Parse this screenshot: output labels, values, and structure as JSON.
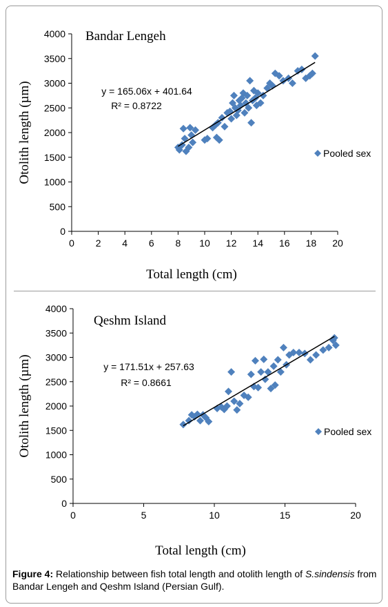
{
  "caption": {
    "label": "Figure 4:",
    "text_before": " Relationship between fish total length and otolith length of ",
    "species": "S.sindensis",
    "text_after": " from Bandar Lengeh and Qeshm Island (Persian Gulf)."
  },
  "colors": {
    "marker": "#4f81bd",
    "line": "#000000",
    "axis": "#000000"
  },
  "chart_data": [
    {
      "type": "scatter",
      "location_label": "Bandar Lengeh",
      "xlabel": "Total length (cm)",
      "ylabel": "Otolith length (µm)",
      "xlim": [
        0,
        20
      ],
      "ylim": [
        0,
        4000
      ],
      "xticks": [
        0,
        2,
        4,
        6,
        8,
        10,
        12,
        14,
        16,
        18,
        20
      ],
      "yticks": [
        0,
        500,
        1000,
        1500,
        2000,
        2500,
        3000,
        3500,
        4000
      ],
      "equation": "y = 165.06x + 401.64",
      "r2": "R² = 0.8722",
      "trendline": {
        "slope": 165.06,
        "intercept": 401.64,
        "x_range": [
          8.0,
          18.3
        ]
      },
      "legend": {
        "label": "Pooled sex",
        "placement": "right"
      },
      "grid": false,
      "series": [
        {
          "name": "Pooled sex",
          "points": [
            [
              8.0,
              1700
            ],
            [
              8.1,
              1650
            ],
            [
              8.3,
              1750
            ],
            [
              8.4,
              2080
            ],
            [
              8.5,
              1880
            ],
            [
              8.6,
              1620
            ],
            [
              8.8,
              1700
            ],
            [
              8.9,
              2100
            ],
            [
              9.0,
              1950
            ],
            [
              9.1,
              1800
            ],
            [
              9.3,
              2050
            ],
            [
              10.0,
              1850
            ],
            [
              10.2,
              1880
            ],
            [
              10.6,
              2100
            ],
            [
              10.8,
              2150
            ],
            [
              10.9,
              1900
            ],
            [
              11.0,
              2200
            ],
            [
              11.1,
              1850
            ],
            [
              11.3,
              2300
            ],
            [
              11.5,
              2120
            ],
            [
              11.7,
              2400
            ],
            [
              11.9,
              2430
            ],
            [
              12.0,
              2280
            ],
            [
              12.1,
              2600
            ],
            [
              12.2,
              2750
            ],
            [
              12.3,
              2500
            ],
            [
              12.4,
              2350
            ],
            [
              12.5,
              2450
            ],
            [
              12.6,
              2650
            ],
            [
              12.7,
              2550
            ],
            [
              12.8,
              2700
            ],
            [
              12.9,
              2800
            ],
            [
              13.0,
              2400
            ],
            [
              13.1,
              2600
            ],
            [
              13.2,
              2750
            ],
            [
              13.3,
              2500
            ],
            [
              13.4,
              3050
            ],
            [
              13.5,
              2200
            ],
            [
              13.6,
              2650
            ],
            [
              13.7,
              2850
            ],
            [
              13.8,
              2700
            ],
            [
              13.9,
              2550
            ],
            [
              14.0,
              2800
            ],
            [
              14.2,
              2600
            ],
            [
              14.4,
              2750
            ],
            [
              14.7,
              2900
            ],
            [
              14.9,
              3000
            ],
            [
              15.1,
              2950
            ],
            [
              15.3,
              3200
            ],
            [
              15.6,
              3150
            ],
            [
              15.9,
              3050
            ],
            [
              16.3,
              3100
            ],
            [
              16.6,
              3000
            ],
            [
              17.0,
              3250
            ],
            [
              17.3,
              3280
            ],
            [
              17.6,
              3100
            ],
            [
              17.9,
              3150
            ],
            [
              18.1,
              3200
            ],
            [
              18.3,
              3550
            ]
          ]
        }
      ]
    },
    {
      "type": "scatter",
      "location_label": "Qeshm Island",
      "xlabel": "Total length (cm)",
      "ylabel": "Otolith length (µm)",
      "xlim": [
        0,
        20
      ],
      "ylim": [
        0,
        4000
      ],
      "xticks": [
        0,
        5,
        10,
        15,
        20
      ],
      "yticks": [
        0,
        500,
        1000,
        1500,
        2000,
        2500,
        3000,
        3500,
        4000
      ],
      "equation": "y = 171.51x + 257.63",
      "r2": "R² = 0.8661",
      "trendline": {
        "slope": 171.51,
        "intercept": 257.63,
        "x_range": [
          7.8,
          18.5
        ]
      },
      "legend": {
        "label": "Pooled  sex",
        "placement": "right"
      },
      "grid": false,
      "series": [
        {
          "name": "Pooled  sex",
          "points": [
            [
              7.8,
              1620
            ],
            [
              8.2,
              1700
            ],
            [
              8.4,
              1820
            ],
            [
              8.6,
              1780
            ],
            [
              8.8,
              1830
            ],
            [
              9.0,
              1700
            ],
            [
              9.2,
              1820
            ],
            [
              9.4,
              1760
            ],
            [
              9.6,
              1680
            ],
            [
              10.2,
              1950
            ],
            [
              10.5,
              1980
            ],
            [
              10.7,
              1930
            ],
            [
              10.9,
              2000
            ],
            [
              11.0,
              2300
            ],
            [
              11.2,
              2700
            ],
            [
              11.4,
              2100
            ],
            [
              11.6,
              1920
            ],
            [
              11.8,
              2050
            ],
            [
              12.1,
              2220
            ],
            [
              12.4,
              2180
            ],
            [
              12.6,
              2650
            ],
            [
              12.8,
              2400
            ],
            [
              12.9,
              2930
            ],
            [
              13.1,
              2380
            ],
            [
              13.3,
              2700
            ],
            [
              13.5,
              2960
            ],
            [
              13.6,
              2550
            ],
            [
              13.8,
              2700
            ],
            [
              14.0,
              2360
            ],
            [
              14.2,
              2820
            ],
            [
              14.3,
              2430
            ],
            [
              14.5,
              2950
            ],
            [
              14.7,
              2700
            ],
            [
              14.9,
              3200
            ],
            [
              15.1,
              2850
            ],
            [
              15.3,
              3050
            ],
            [
              15.6,
              3100
            ],
            [
              16.0,
              3100
            ],
            [
              16.4,
              3080
            ],
            [
              16.8,
              2950
            ],
            [
              17.2,
              3050
            ],
            [
              17.7,
              3150
            ],
            [
              18.1,
              3200
            ],
            [
              18.4,
              3350
            ],
            [
              18.5,
              3400
            ],
            [
              18.6,
              3250
            ]
          ]
        }
      ]
    }
  ]
}
